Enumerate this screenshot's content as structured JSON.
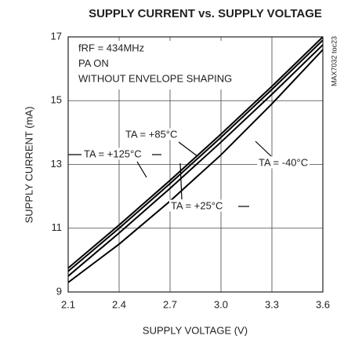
{
  "chart_data": {
    "type": "line",
    "title": "SUPPLY CURRENT vs. SUPPLY VOLTAGE",
    "xlabel": "SUPPLY VOLTAGE (V)",
    "ylabel": "SUPPLY CURRENT (mA)",
    "side_label": "MAX7032 toc23",
    "annotations": [
      "fRF = 434MHz",
      "PA ON",
      "WITHOUT ENVELOPE SHAPING"
    ],
    "x": [
      2.1,
      2.4,
      2.7,
      3.0,
      3.3,
      3.6
    ],
    "series": [
      {
        "name": "TA = +125°C",
        "color": "#000000",
        "values": [
          9.75,
          11.1,
          12.5,
          13.95,
          15.45,
          17.0
        ]
      },
      {
        "name": "TA = +85°C",
        "color": "#000000",
        "values": [
          9.65,
          11.0,
          12.4,
          13.85,
          15.35,
          16.9
        ]
      },
      {
        "name": "TA = +25°C",
        "color": "#000000",
        "values": [
          9.5,
          10.85,
          12.25,
          13.7,
          15.2,
          16.75
        ]
      },
      {
        "name": "TA = -40°C",
        "color": "#000000",
        "values": [
          9.3,
          10.5,
          11.85,
          13.3,
          14.9,
          16.6
        ]
      }
    ],
    "xlim": [
      2.1,
      3.6
    ],
    "xticks": [
      2.1,
      2.4,
      2.7,
      {
        "value": 3,
        "label": "3.0"
      },
      3.3,
      3.6
    ],
    "ylim": [
      9,
      17
    ],
    "yticks": [
      9,
      11,
      13,
      15,
      17
    ],
    "grid": true
  }
}
